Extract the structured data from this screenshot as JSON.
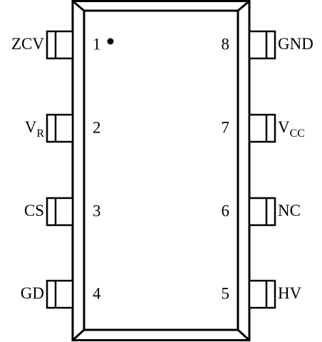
{
  "left_pins": [
    {
      "number": 1,
      "label": "ZCV"
    },
    {
      "number": 2,
      "label": "V",
      "sub": "R"
    },
    {
      "number": 3,
      "label": "CS"
    },
    {
      "number": 4,
      "label": "GD"
    }
  ],
  "right_pins": [
    {
      "number": 8,
      "label": "GND"
    },
    {
      "number": 7,
      "label": "V",
      "sub": "CC"
    },
    {
      "number": 6,
      "label": "NC"
    },
    {
      "number": 5,
      "label": "HV"
    }
  ]
}
